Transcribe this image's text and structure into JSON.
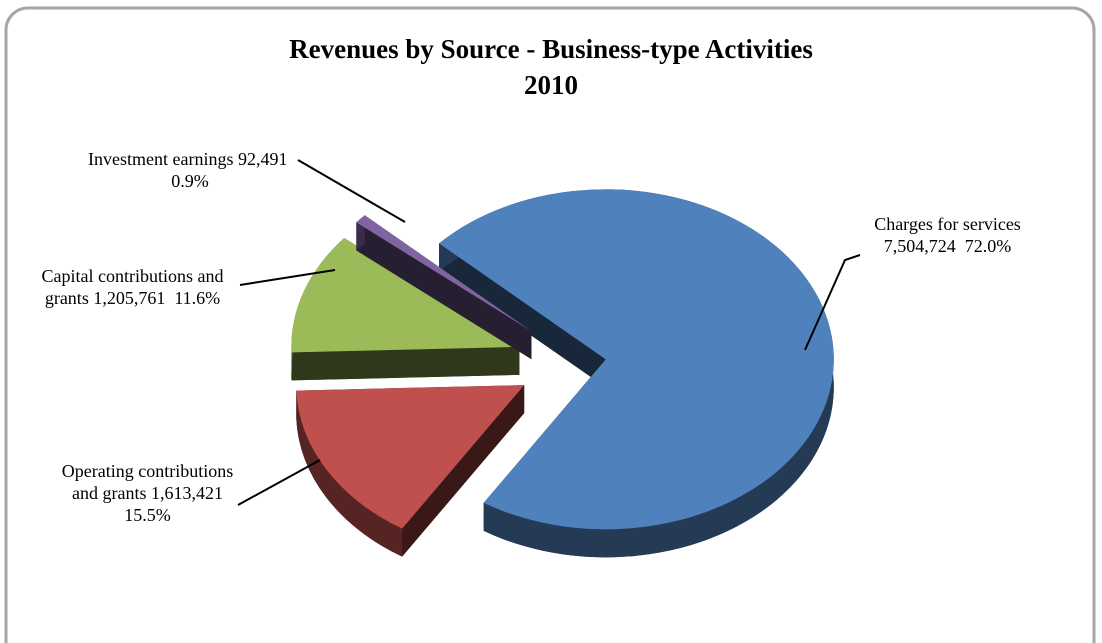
{
  "chart_data": {
    "type": "pie",
    "title": "Revenues by Source - Business-type Activities",
    "subtitle": "2010",
    "categories": [
      "Charges for services",
      "Operating contributions and grants",
      "Capital contributions and grants",
      "Investment earnings"
    ],
    "values": [
      7504724,
      1613421,
      1205761,
      92491
    ],
    "value_labels": [
      "7,504,724",
      "1,613,421",
      "1,205,761",
      "92,491"
    ],
    "percentages": [
      72.0,
      15.5,
      11.6,
      0.9
    ],
    "percentage_labels": [
      "72.0%",
      "15.5%",
      "11.6%",
      "0.9%"
    ],
    "colors": [
      "#4f81bd",
      "#c0504d",
      "#9bbb59",
      "#8064a2"
    ]
  }
}
